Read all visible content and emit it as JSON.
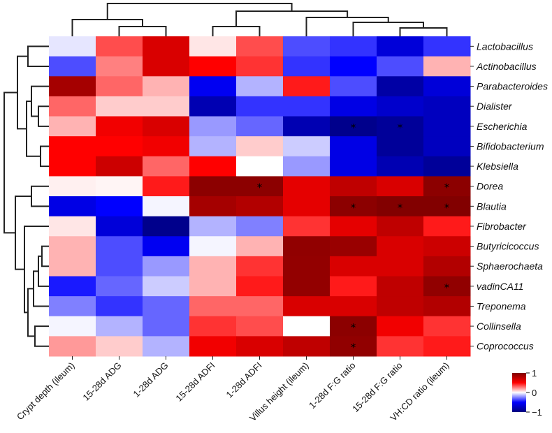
{
  "chart_data": {
    "type": "heatmap",
    "title": "",
    "xlabel": "",
    "ylabel": "",
    "columns": [
      "Crypt depth (ileum)",
      "15-28d ADG",
      "1-28d ADG",
      "15-28d ADFI",
      "1-28d ADFI",
      "Villus height (ileum)",
      "1-28d F:G ratio",
      "15-28d F:G ratio",
      "VH:CD ratio (ileum)"
    ],
    "rows": [
      "Lactobacillus",
      "Actinobacillus",
      "Parabacteroides",
      "Dialister",
      "Escherichia",
      "Bifidobacterium",
      "Klebsiella",
      "Dorea",
      "Blautia",
      "Fibrobacter",
      "Butyricicoccus",
      "Sphaerochaeta",
      "vadinCA11",
      "Treponema",
      "Collinsella",
      "Coprococcus"
    ],
    "values": [
      [
        -0.05,
        0.35,
        0.65,
        0.05,
        0.35,
        -0.35,
        -0.4,
        -0.65,
        -0.4
      ],
      [
        -0.35,
        0.25,
        0.65,
        0.5,
        0.4,
        -0.4,
        -0.5,
        -0.35,
        0.15
      ],
      [
        0.85,
        0.3,
        0.15,
        -0.55,
        -0.15,
        0.45,
        -0.35,
        -0.85,
        -0.65
      ],
      [
        0.3,
        0.1,
        0.1,
        -0.8,
        -0.4,
        -0.4,
        -0.6,
        -0.7,
        -0.75
      ],
      [
        0.15,
        0.55,
        0.65,
        -0.2,
        -0.3,
        -0.8,
        -0.95,
        -0.9,
        -0.75
      ],
      [
        0.5,
        0.5,
        0.55,
        -0.15,
        0.1,
        -0.1,
        -0.6,
        -0.9,
        -0.75
      ],
      [
        0.5,
        0.7,
        0.3,
        0.5,
        0.0,
        -0.2,
        -0.6,
        -0.8,
        -0.9
      ],
      [
        0.03,
        0.02,
        0.45,
        0.95,
        0.95,
        0.6,
        0.75,
        0.65,
        0.95
      ],
      [
        -0.6,
        -0.5,
        -0.02,
        0.85,
        0.8,
        0.6,
        0.95,
        0.99,
        0.99
      ],
      [
        0.05,
        -0.65,
        -0.95,
        -0.15,
        -0.25,
        0.4,
        0.6,
        0.75,
        0.45
      ],
      [
        0.15,
        -0.35,
        -0.55,
        -0.02,
        0.15,
        0.93,
        0.9,
        0.65,
        0.7
      ],
      [
        0.15,
        -0.35,
        -0.2,
        0.15,
        0.4,
        0.92,
        0.65,
        0.65,
        0.8
      ],
      [
        -0.45,
        -0.3,
        -0.1,
        0.15,
        0.45,
        0.92,
        0.45,
        0.75,
        0.93
      ],
      [
        -0.25,
        -0.4,
        -0.3,
        0.3,
        0.3,
        0.65,
        0.65,
        0.75,
        0.8
      ],
      [
        -0.02,
        -0.15,
        -0.3,
        0.4,
        0.35,
        0.0,
        0.95,
        0.55,
        0.4
      ],
      [
        0.2,
        0.1,
        -0.15,
        0.55,
        0.65,
        0.75,
        0.93,
        0.4,
        0.45
      ]
    ],
    "significance": [
      {
        "row": "Escherichia",
        "col": "1-28d F:G ratio"
      },
      {
        "row": "Escherichia",
        "col": "15-28d F:G ratio"
      },
      {
        "row": "Dorea",
        "col": "1-28d ADFI"
      },
      {
        "row": "Dorea",
        "col": "VH:CD ratio (ileum)"
      },
      {
        "row": "Blautia",
        "col": "1-28d F:G ratio"
      },
      {
        "row": "Blautia",
        "col": "15-28d F:G ratio"
      },
      {
        "row": "Blautia",
        "col": "VH:CD ratio (ileum)"
      },
      {
        "row": "vadinCA11",
        "col": "VH:CD ratio (ileum)"
      },
      {
        "row": "Collinsella",
        "col": "1-28d F:G ratio"
      },
      {
        "row": "Coprococcus",
        "col": "1-28d F:G ratio"
      }
    ],
    "significance_mark": "*",
    "colorscale": {
      "min": -1,
      "max": 1,
      "low_color": "#00007f",
      "mid_low_color": "#0000ff",
      "mid_color": "#ffffff",
      "mid_high_color": "#ff0000",
      "high_color": "#7f0000",
      "ticks": [
        "1",
        "0",
        "−1"
      ]
    },
    "legend": "right",
    "grid": false,
    "row_dendrogram": "left",
    "column_dendrogram": "top"
  }
}
